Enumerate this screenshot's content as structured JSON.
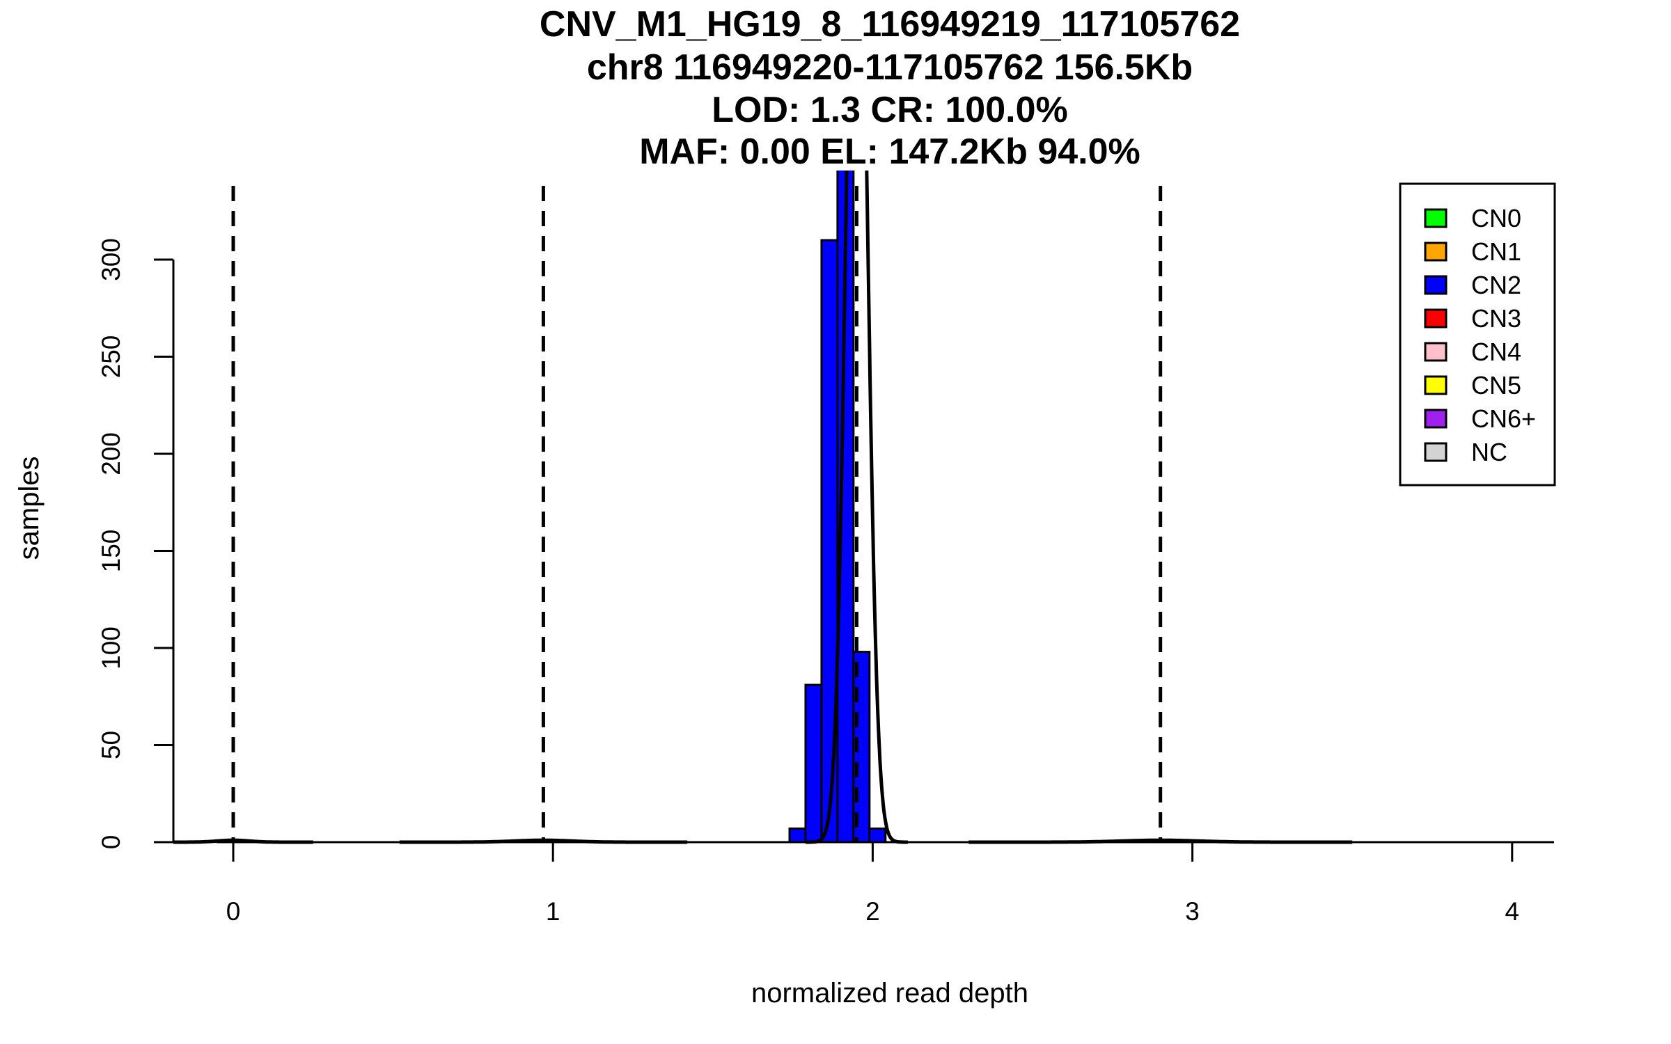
{
  "chart_data": {
    "type": "bar",
    "title_lines": [
      "CNV_M1_HG19_8_116949219_117105762",
      "chr8 116949220-117105762 156.5Kb",
      "LOD: 1.3 CR: 100.0%",
      "MAF: 0.00 EL: 147.2Kb 94.0%"
    ],
    "xlabel": "normalized read depth",
    "ylabel": "samples",
    "xlim": [
      -0.04,
      4.13
    ],
    "ylim": [
      0,
      346
    ],
    "xticks": [
      0,
      1,
      2,
      3,
      4
    ],
    "yticks": [
      0,
      50,
      100,
      150,
      200,
      250,
      300
    ],
    "bins": [
      {
        "x0": 1.74,
        "x1": 1.79,
        "count": 7,
        "color": "#0000FF"
      },
      {
        "x0": 1.79,
        "x1": 1.84,
        "count": 81,
        "color": "#0000FF"
      },
      {
        "x0": 1.84,
        "x1": 1.89,
        "count": 310,
        "color": "#0000FF"
      },
      {
        "x0": 1.89,
        "x1": 1.94,
        "count": 360,
        "color": "#0000FF"
      },
      {
        "x0": 1.94,
        "x1": 1.99,
        "count": 98,
        "color": "#0000FF"
      },
      {
        "x0": 1.99,
        "x1": 2.04,
        "count": 7,
        "color": "#0000FF"
      }
    ],
    "copy_number_means": [
      0.0,
      0.97,
      1.95,
      2.9
    ],
    "fitted_curves": [
      {
        "mean": 0.0,
        "sd": 0.05,
        "peak": 1
      },
      {
        "mean": 0.97,
        "sd": 0.09,
        "peak": 1
      },
      {
        "mean": 1.95,
        "sd": 0.032,
        "peak": 560
      },
      {
        "mean": 2.9,
        "sd": 0.12,
        "peak": 1
      }
    ],
    "legend": {
      "placement": "top-right",
      "items": [
        {
          "label": "CN0",
          "color": "#00FF00"
        },
        {
          "label": "CN1",
          "color": "#FFA500"
        },
        {
          "label": "CN2",
          "color": "#0000FF"
        },
        {
          "label": "CN3",
          "color": "#FF0000"
        },
        {
          "label": "CN4",
          "color": "#FFC0CB"
        },
        {
          "label": "CN5",
          "color": "#FFFF00"
        },
        {
          "label": "CN6+",
          "color": "#A020F0"
        },
        {
          "label": "NC",
          "color": "#D3D3D3"
        }
      ]
    }
  }
}
